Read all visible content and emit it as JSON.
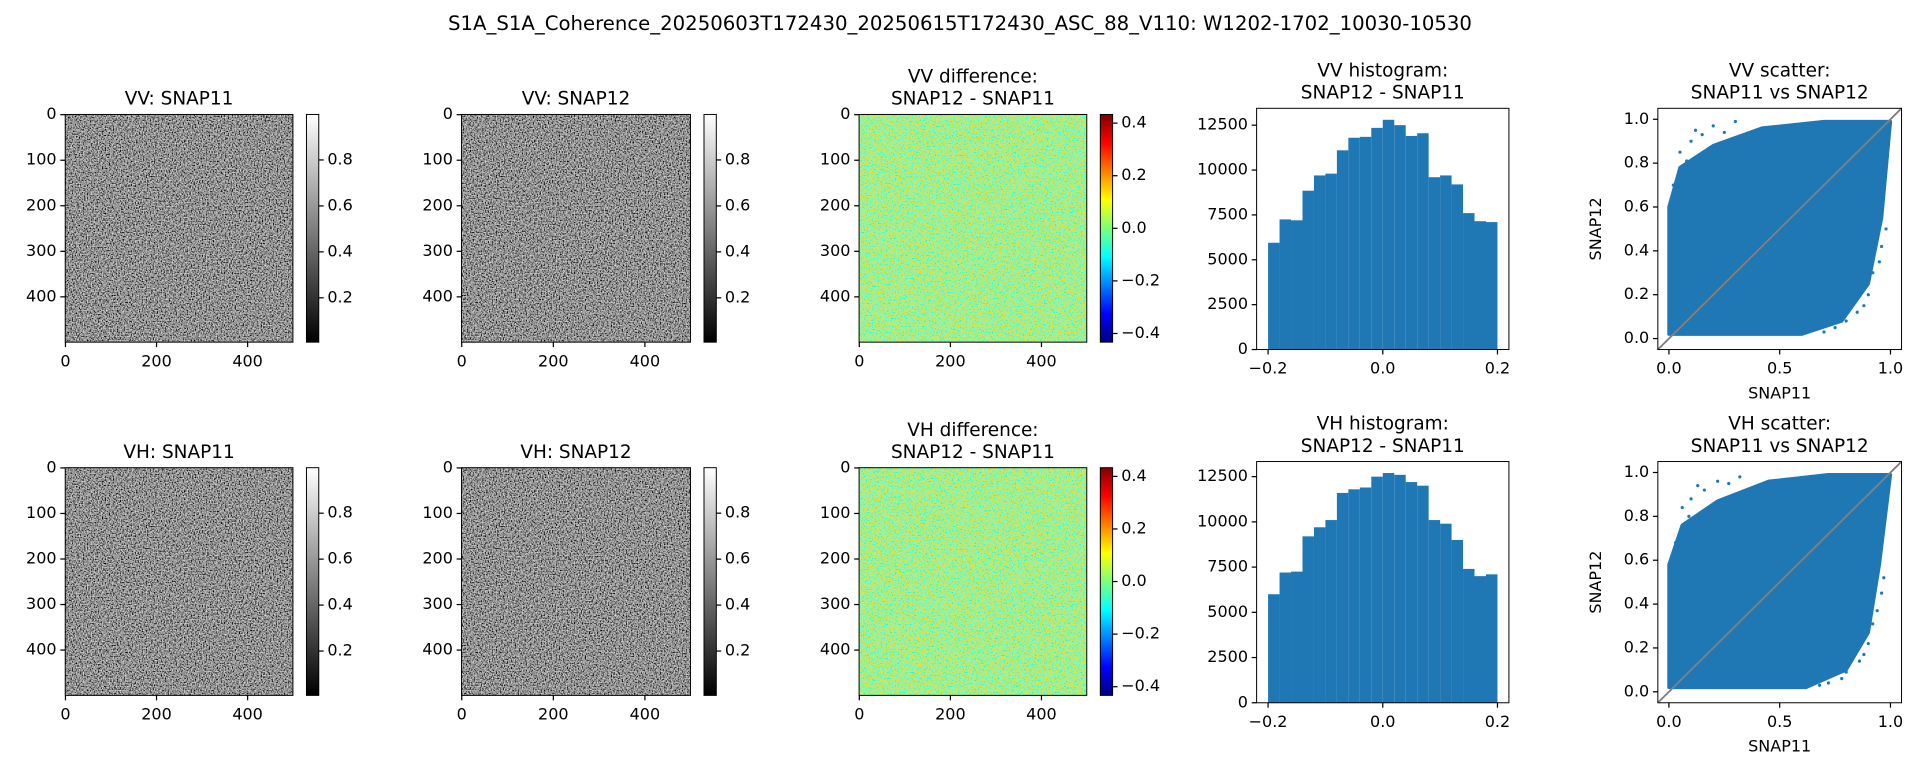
{
  "figure": {
    "title": "S1A_S1A_Coherence_20250603T172430_20250615T172430_ASC_88_V110: W1202-1702_10030-10530"
  },
  "chart_data": [
    {
      "type": "image",
      "title": "VV: SNAP11",
      "colormap": "gray",
      "xlim": [
        -0.5,
        499.5
      ],
      "ylim": [
        499.5,
        -0.5
      ],
      "xticks": [
        0,
        200,
        400
      ],
      "yticks": [
        0,
        100,
        200,
        300,
        400
      ],
      "colorbar": {
        "lim": [
          0.007,
          0.998
        ],
        "ticks": [
          0.2,
          0.4,
          0.6,
          0.8
        ]
      }
    },
    {
      "type": "image",
      "title": "VV: SNAP12",
      "colormap": "gray",
      "xlim": [
        -0.5,
        499.5
      ],
      "ylim": [
        499.5,
        -0.5
      ],
      "xticks": [
        0,
        200,
        400
      ],
      "yticks": [
        0,
        100,
        200,
        300,
        400
      ],
      "colorbar": {
        "lim": [
          0.007,
          0.998
        ],
        "ticks": [
          0.2,
          0.4,
          0.6,
          0.8
        ]
      }
    },
    {
      "type": "image",
      "title": [
        "VV difference:",
        "SNAP12 - SNAP11"
      ],
      "colormap": "jet",
      "xlim": [
        -0.5,
        499.5
      ],
      "ylim": [
        499.5,
        -0.5
      ],
      "xticks": [
        0,
        200,
        400
      ],
      "yticks": [
        0,
        100,
        200,
        300,
        400
      ],
      "colorbar": {
        "lim": [
          -0.433,
          0.433
        ],
        "ticks": [
          {
            "value": -0.4,
            "label": "−0.4"
          },
          {
            "value": -0.2,
            "label": "−0.2"
          },
          {
            "value": 0,
            "label": "0.0"
          },
          0.2,
          0.4
        ]
      }
    },
    {
      "type": "histogram",
      "title": [
        "VV histogram:",
        "SNAP12 - SNAP11"
      ],
      "color": "#1f77b4",
      "bins": [
        -0.2,
        -0.18,
        -0.16,
        -0.14,
        -0.12,
        -0.1,
        -0.08,
        -0.06,
        -0.04,
        -0.02,
        0,
        0.02,
        0.04,
        0.06,
        0.08,
        0.1,
        0.12,
        0.14,
        0.16,
        0.18,
        0.2
      ],
      "values": [
        5950,
        7250,
        7200,
        8850,
        9700,
        9800,
        11100,
        11800,
        11850,
        12350,
        12800,
        12500,
        11900,
        12050,
        9600,
        9700,
        9200,
        7600,
        7150,
        7100
      ],
      "xlim": [
        -0.22,
        0.22
      ],
      "ylim": [
        0,
        13440
      ],
      "xticks": [
        {
          "value": -0.2,
          "label": "−0.2"
        },
        {
          "value": 0,
          "label": "0.0"
        },
        0.2
      ],
      "yticks": [
        0,
        2500,
        5000,
        7500,
        10000,
        12500
      ]
    },
    {
      "type": "scatter",
      "title": [
        "VV scatter:",
        "SNAP11 vs SNAP12"
      ],
      "color": "#1f77b4",
      "line_color": "#808080",
      "xlabel": "SNAP11",
      "ylabel": "SNAP12",
      "x": [
        0.05,
        0.1,
        0.15,
        0.08,
        0.2,
        0.3,
        0.02,
        0.12,
        0.25,
        0.7,
        0.8,
        0.85,
        0.9,
        0.95,
        0.98,
        0.92,
        0.75,
        0.88,
        0.96,
        0.65
      ],
      "y": [
        0.85,
        0.9,
        0.93,
        0.81,
        0.97,
        0.99,
        0.7,
        0.95,
        0.94,
        0.03,
        0.08,
        0.12,
        0.2,
        0.35,
        0.5,
        0.3,
        0.05,
        0.15,
        0.42,
        0.04
      ],
      "xlim": [
        -0.05,
        1.05
      ],
      "ylim": [
        -0.05,
        1.05
      ],
      "xticks": [
        {
          "value": 0,
          "label": "0.0"
        },
        0.5,
        {
          "value": 1,
          "label": "1.0"
        }
      ],
      "yticks": [
        {
          "value": 0,
          "label": "0.0"
        },
        0.2,
        0.4,
        0.6,
        0.8,
        {
          "value": 1,
          "label": "1.0"
        }
      ]
    },
    {
      "type": "image",
      "title": "VH: SNAP11",
      "colormap": "gray",
      "xlim": [
        -0.5,
        499.5
      ],
      "ylim": [
        499.5,
        -0.5
      ],
      "xticks": [
        0,
        200,
        400
      ],
      "yticks": [
        0,
        100,
        200,
        300,
        400
      ],
      "colorbar": {
        "lim": [
          0.007,
          0.998
        ],
        "ticks": [
          0.2,
          0.4,
          0.6,
          0.8
        ]
      }
    },
    {
      "type": "image",
      "title": "VH: SNAP12",
      "colormap": "gray",
      "xlim": [
        -0.5,
        499.5
      ],
      "ylim": [
        499.5,
        -0.5
      ],
      "xticks": [
        0,
        200,
        400
      ],
      "yticks": [
        0,
        100,
        200,
        300,
        400
      ],
      "colorbar": {
        "lim": [
          0.007,
          0.998
        ],
        "ticks": [
          0.2,
          0.4,
          0.6,
          0.8
        ]
      }
    },
    {
      "type": "image",
      "title": [
        "VH difference:",
        "SNAP12 - SNAP11"
      ],
      "colormap": "jet",
      "xlim": [
        -0.5,
        499.5
      ],
      "ylim": [
        499.5,
        -0.5
      ],
      "xticks": [
        0,
        200,
        400
      ],
      "yticks": [
        0,
        100,
        200,
        300,
        400
      ],
      "colorbar": {
        "lim": [
          -0.433,
          0.433
        ],
        "ticks": [
          {
            "value": -0.4,
            "label": "−0.4"
          },
          {
            "value": -0.2,
            "label": "−0.2"
          },
          {
            "value": 0,
            "label": "0.0"
          },
          0.2,
          0.4
        ]
      }
    },
    {
      "type": "histogram",
      "title": [
        "VH histogram:",
        "SNAP12 - SNAP11"
      ],
      "color": "#1f77b4",
      "bins": [
        -0.2,
        -0.18,
        -0.16,
        -0.14,
        -0.12,
        -0.1,
        -0.08,
        -0.06,
        -0.04,
        -0.02,
        0,
        0.02,
        0.04,
        0.06,
        0.08,
        0.1,
        0.12,
        0.14,
        0.16,
        0.18,
        0.2
      ],
      "values": [
        6000,
        7200,
        7250,
        9200,
        9700,
        10100,
        11600,
        11800,
        11900,
        12500,
        12700,
        12600,
        12200,
        12000,
        10100,
        9900,
        9000,
        7400,
        7000,
        7100
      ],
      "xlim": [
        -0.22,
        0.22
      ],
      "ylim": [
        0,
        13335
      ],
      "xticks": [
        {
          "value": -0.2,
          "label": "−0.2"
        },
        {
          "value": 0,
          "label": "0.0"
        },
        0.2
      ],
      "yticks": [
        0,
        2500,
        5000,
        7500,
        10000,
        12500
      ]
    },
    {
      "type": "scatter",
      "title": [
        "VH scatter:",
        "SNAP11 vs SNAP12"
      ],
      "color": "#1f77b4",
      "line_color": "#808080",
      "xlabel": "SNAP11",
      "ylabel": "SNAP12",
      "x": [
        0.06,
        0.1,
        0.16,
        0.09,
        0.22,
        0.32,
        0.03,
        0.13,
        0.27,
        0.72,
        0.8,
        0.86,
        0.9,
        0.94,
        0.97,
        0.92,
        0.78,
        0.88,
        0.96,
        0.68
      ],
      "y": [
        0.84,
        0.88,
        0.92,
        0.8,
        0.96,
        0.98,
        0.68,
        0.94,
        0.95,
        0.04,
        0.09,
        0.14,
        0.22,
        0.37,
        0.52,
        0.31,
        0.06,
        0.17,
        0.45,
        0.03
      ],
      "xlim": [
        -0.05,
        1.05
      ],
      "ylim": [
        -0.05,
        1.05
      ],
      "xticks": [
        {
          "value": 0,
          "label": "0.0"
        },
        0.5,
        {
          "value": 1,
          "label": "1.0"
        }
      ],
      "yticks": [
        {
          "value": 0,
          "label": "0.0"
        },
        0.2,
        0.4,
        0.6,
        0.8,
        {
          "value": 1,
          "label": "1.0"
        }
      ]
    }
  ]
}
